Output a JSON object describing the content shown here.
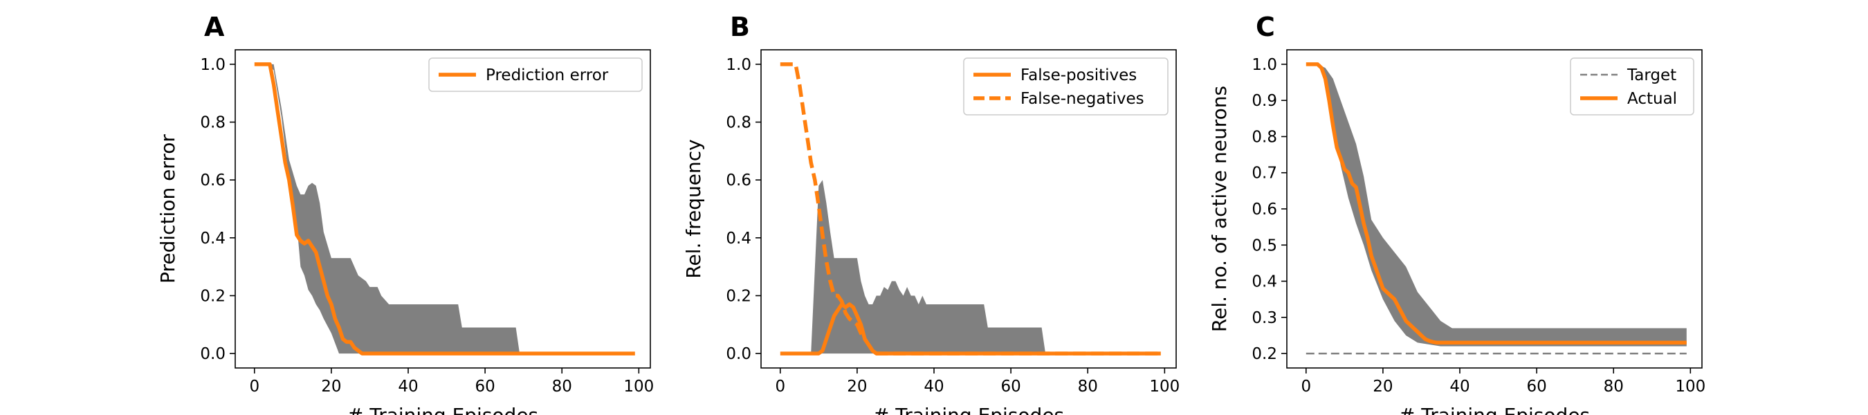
{
  "chart_data": [
    {
      "panel": "A",
      "type": "line",
      "xlabel": "# Training Episodes",
      "ylabel": "Prediction error",
      "xlim": [
        -5,
        103
      ],
      "ylim": [
        -0.05,
        1.05
      ],
      "xticks": [
        0,
        20,
        40,
        60,
        80,
        100
      ],
      "yticks": [
        0.0,
        0.2,
        0.4,
        0.6,
        0.8,
        1.0
      ],
      "ytick_decimals": 1,
      "legend": "top-right",
      "grid": false,
      "band": {
        "color": "#808080",
        "x": [
          0,
          3,
          5,
          7,
          9,
          11,
          12,
          13,
          14,
          15,
          16,
          17,
          18,
          20,
          22,
          25,
          27,
          29,
          30,
          32,
          33,
          35,
          38,
          43,
          53,
          54,
          56,
          58,
          60,
          62,
          64,
          66,
          68,
          69,
          70,
          80,
          90,
          99
        ],
        "upper": [
          1.0,
          1.0,
          1.0,
          0.85,
          0.67,
          0.58,
          0.55,
          0.55,
          0.58,
          0.59,
          0.58,
          0.52,
          0.42,
          0.33,
          0.33,
          0.33,
          0.27,
          0.25,
          0.23,
          0.23,
          0.2,
          0.17,
          0.17,
          0.17,
          0.17,
          0.09,
          0.09,
          0.09,
          0.09,
          0.09,
          0.09,
          0.09,
          0.09,
          0.0,
          0.0,
          0.0,
          0.0,
          0.0
        ],
        "lower": [
          1.0,
          1.0,
          0.98,
          0.82,
          0.6,
          0.45,
          0.3,
          0.27,
          0.22,
          0.2,
          0.17,
          0.15,
          0.12,
          0.07,
          0.0,
          0.0,
          0.0,
          0.0,
          0.0,
          0.0,
          0.0,
          0.0,
          0.0,
          0.0,
          0.0,
          0.0,
          0.0,
          0.0,
          0.0,
          0.0,
          0.0,
          0.0,
          0.0,
          0.0,
          0.0,
          0.0,
          0.0,
          0.0
        ]
      },
      "series": [
        {
          "name": "Prediction error",
          "color": "#ff7f0e",
          "dash": "solid",
          "x": [
            0,
            1,
            2,
            3,
            4,
            5,
            6,
            7,
            8,
            9,
            10,
            11,
            12,
            13,
            14,
            15,
            16,
            17,
            18,
            19,
            20,
            21,
            22,
            23,
            24,
            25,
            26,
            27,
            28,
            29,
            30,
            40,
            50,
            60,
            70,
            80,
            90,
            99
          ],
          "y": [
            1.0,
            1.0,
            1.0,
            1.0,
            1.0,
            0.93,
            0.84,
            0.75,
            0.66,
            0.6,
            0.51,
            0.41,
            0.39,
            0.38,
            0.39,
            0.37,
            0.35,
            0.3,
            0.25,
            0.2,
            0.17,
            0.12,
            0.09,
            0.05,
            0.04,
            0.04,
            0.02,
            0.01,
            0.0,
            0.0,
            0.0,
            0.0,
            0.0,
            0.0,
            0.0,
            0.0,
            0.0,
            0.0
          ]
        }
      ]
    },
    {
      "panel": "B",
      "type": "line",
      "xlabel": "# Training Episodes",
      "ylabel": "Rel. frequency",
      "xlim": [
        -5,
        103
      ],
      "ylim": [
        -0.05,
        1.05
      ],
      "xticks": [
        0,
        20,
        40,
        60,
        80,
        100
      ],
      "yticks": [
        0.0,
        0.2,
        0.4,
        0.6,
        0.8,
        1.0
      ],
      "ytick_decimals": 1,
      "legend": "top-right",
      "grid": false,
      "band": {
        "color": "#808080",
        "x": [
          0,
          8,
          10,
          11,
          12,
          13,
          14,
          15,
          16,
          17,
          18,
          20,
          21,
          22,
          23,
          24,
          25,
          26,
          27,
          28,
          29,
          30,
          31,
          32,
          33,
          34,
          35,
          36,
          37,
          38,
          40,
          42,
          46,
          53,
          54,
          58,
          62,
          66,
          68,
          69,
          70,
          80,
          90,
          99
        ],
        "upper": [
          0.0,
          0.0,
          0.58,
          0.6,
          0.52,
          0.42,
          0.33,
          0.33,
          0.33,
          0.33,
          0.33,
          0.33,
          0.25,
          0.2,
          0.17,
          0.17,
          0.2,
          0.2,
          0.23,
          0.22,
          0.25,
          0.25,
          0.22,
          0.2,
          0.23,
          0.2,
          0.2,
          0.17,
          0.2,
          0.17,
          0.17,
          0.17,
          0.17,
          0.17,
          0.09,
          0.09,
          0.09,
          0.09,
          0.09,
          0.0,
          0.0,
          0.0,
          0.0,
          0.0
        ],
        "lower": [
          0.0,
          0.0,
          0.0,
          0.0,
          0.0,
          0.0,
          0.0,
          0.0,
          0.0,
          0.0,
          0.0,
          0.0,
          0.0,
          0.0,
          0.0,
          0.0,
          0.0,
          0.0,
          0.0,
          0.0,
          0.0,
          0.0,
          0.0,
          0.0,
          0.0,
          0.0,
          0.0,
          0.0,
          0.0,
          0.0,
          0.0,
          0.0,
          0.0,
          0.0,
          0.0,
          0.0,
          0.0,
          0.0,
          0.0,
          0.0,
          0.0,
          0.0,
          0.0,
          0.0
        ]
      },
      "series": [
        {
          "name": "False-positives",
          "color": "#ff7f0e",
          "dash": "solid",
          "x": [
            0,
            10,
            11,
            12,
            13,
            14,
            15,
            16,
            17,
            18,
            19,
            20,
            21,
            22,
            23,
            24,
            25,
            26,
            30,
            40,
            50,
            60,
            70,
            80,
            90,
            99
          ],
          "y": [
            0.0,
            0.0,
            0.01,
            0.05,
            0.09,
            0.13,
            0.15,
            0.17,
            0.16,
            0.17,
            0.16,
            0.13,
            0.1,
            0.05,
            0.03,
            0.01,
            0.0,
            0.0,
            0.0,
            0.0,
            0.0,
            0.0,
            0.0,
            0.0,
            0.0,
            0.0
          ]
        },
        {
          "name": "False-negatives",
          "color": "#ff7f0e",
          "dash": "dashed",
          "x": [
            0,
            1,
            2,
            3,
            4,
            5,
            6,
            7,
            8,
            9,
            10,
            11,
            12,
            13,
            14,
            15,
            16,
            17,
            18,
            19,
            20,
            21,
            22,
            23,
            24,
            25,
            26,
            30,
            40,
            50,
            60,
            70,
            80,
            90,
            99
          ],
          "y": [
            1.0,
            1.0,
            1.0,
            1.0,
            1.0,
            0.93,
            0.84,
            0.75,
            0.66,
            0.6,
            0.51,
            0.41,
            0.32,
            0.25,
            0.2,
            0.2,
            0.18,
            0.14,
            0.12,
            0.11,
            0.1,
            0.07,
            0.05,
            0.03,
            0.01,
            0.0,
            0.0,
            0.0,
            0.0,
            0.0,
            0.0,
            0.0,
            0.0,
            0.0,
            0.0
          ]
        }
      ]
    },
    {
      "panel": "C",
      "type": "line",
      "xlabel": "# Training Episodes",
      "ylabel": "Rel. no. of active neurons",
      "xlim": [
        -5,
        103
      ],
      "ylim": [
        0.16,
        1.04
      ],
      "xticks": [
        0,
        20,
        40,
        60,
        80,
        100
      ],
      "yticks": [
        0.2,
        0.3,
        0.4,
        0.5,
        0.6,
        0.7,
        0.8,
        0.9,
        1.0
      ],
      "ytick_decimals": 1,
      "legend": "top-right",
      "grid": false,
      "band": {
        "color": "#808080",
        "x": [
          0,
          3,
          5,
          7,
          9,
          11,
          13,
          15,
          17,
          20,
          23,
          26,
          29,
          32,
          35,
          38,
          40,
          50,
          60,
          70,
          80,
          90,
          99
        ],
        "upper": [
          1.0,
          1.0,
          0.99,
          0.96,
          0.9,
          0.84,
          0.78,
          0.69,
          0.57,
          0.52,
          0.48,
          0.44,
          0.37,
          0.33,
          0.29,
          0.27,
          0.27,
          0.27,
          0.27,
          0.27,
          0.27,
          0.27,
          0.27
        ],
        "lower": [
          1.0,
          1.0,
          0.97,
          0.84,
          0.72,
          0.63,
          0.56,
          0.5,
          0.43,
          0.35,
          0.29,
          0.25,
          0.23,
          0.225,
          0.22,
          0.22,
          0.22,
          0.22,
          0.22,
          0.22,
          0.22,
          0.22,
          0.22
        ]
      },
      "series": [
        {
          "name": "Target",
          "color": "#808080",
          "dash": "dashed",
          "x": [
            0,
            99
          ],
          "y": [
            0.2,
            0.2
          ]
        },
        {
          "name": "Actual",
          "color": "#ff7f0e",
          "dash": "solid",
          "x": [
            0,
            3,
            4,
            5,
            6,
            7,
            8,
            9,
            10,
            11,
            12,
            13,
            14,
            15,
            16,
            17,
            18,
            19,
            20,
            21,
            22,
            23,
            24,
            25,
            26,
            27,
            28,
            29,
            30,
            31,
            32,
            33,
            34,
            35,
            36,
            40,
            50,
            60,
            70,
            80,
            90,
            99
          ],
          "y": [
            1.0,
            1.0,
            0.99,
            0.96,
            0.9,
            0.83,
            0.77,
            0.74,
            0.71,
            0.7,
            0.67,
            0.66,
            0.61,
            0.56,
            0.52,
            0.47,
            0.44,
            0.41,
            0.38,
            0.37,
            0.36,
            0.35,
            0.33,
            0.31,
            0.29,
            0.28,
            0.27,
            0.26,
            0.25,
            0.24,
            0.235,
            0.232,
            0.23,
            0.23,
            0.23,
            0.23,
            0.23,
            0.23,
            0.23,
            0.23,
            0.23,
            0.23
          ]
        }
      ]
    }
  ]
}
